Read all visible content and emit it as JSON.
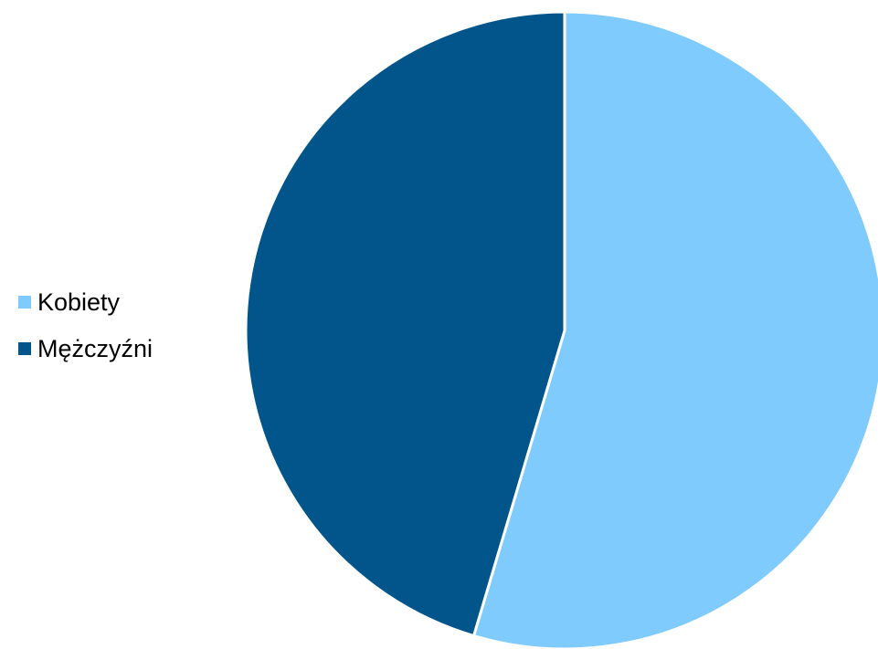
{
  "chart_data": {
    "type": "pie",
    "categories": [
      "Kobiety",
      "Mężczyźni"
    ],
    "values": [
      54.6,
      45.4
    ],
    "colors": [
      "#7FCBFD",
      "#02558B"
    ],
    "legend_position": "left",
    "start_angle": "top",
    "direction": "clockwise",
    "slice_border_color": "#FFFFFF"
  }
}
